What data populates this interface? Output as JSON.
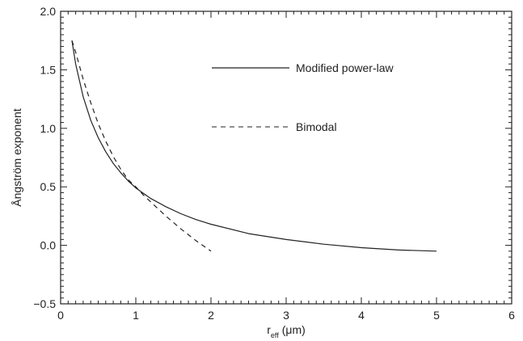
{
  "chart_data": {
    "type": "line",
    "xlabel_main": "r",
    "xlabel_sub": "eff",
    "xlabel_unit": "(μm)",
    "ylabel": "Ångström exponent",
    "xlim": [
      0,
      6
    ],
    "ylim": [
      -0.5,
      2.0
    ],
    "x_ticks": [
      0,
      1,
      2,
      3,
      4,
      5,
      6
    ],
    "x_tick_labels": [
      "0",
      "1",
      "2",
      "3",
      "4",
      "5",
      "6"
    ],
    "y_ticks": [
      -0.5,
      0.0,
      0.5,
      1.0,
      1.5,
      2.0
    ],
    "y_tick_labels": [
      "−0.5",
      "0.0",
      "0.5",
      "1.0",
      "1.5",
      "2.0"
    ],
    "grid": false,
    "legend_position": "top-right (inside)",
    "series": [
      {
        "name": "Modified power-law",
        "style": "solid",
        "color": "#222222",
        "x": [
          0.15,
          0.2,
          0.3,
          0.4,
          0.5,
          0.6,
          0.7,
          0.8,
          0.9,
          1.0,
          1.2,
          1.4,
          1.6,
          1.8,
          2.0,
          2.5,
          3.0,
          3.5,
          4.0,
          4.5,
          5.0
        ],
        "y": [
          1.75,
          1.55,
          1.27,
          1.07,
          0.92,
          0.8,
          0.7,
          0.62,
          0.55,
          0.49,
          0.4,
          0.33,
          0.27,
          0.22,
          0.18,
          0.1,
          0.05,
          0.01,
          -0.02,
          -0.04,
          -0.05
        ]
      },
      {
        "name": "Bimodal",
        "style": "dashed",
        "color": "#222222",
        "x": [
          0.15,
          0.2,
          0.3,
          0.4,
          0.5,
          0.6,
          0.7,
          0.8,
          0.9,
          1.0,
          1.1,
          1.2,
          1.4,
          1.6,
          1.8,
          2.0
        ],
        "y": [
          1.75,
          1.65,
          1.42,
          1.22,
          1.04,
          0.89,
          0.76,
          0.65,
          0.56,
          0.5,
          0.43,
          0.37,
          0.25,
          0.14,
          0.04,
          -0.05
        ]
      }
    ]
  }
}
